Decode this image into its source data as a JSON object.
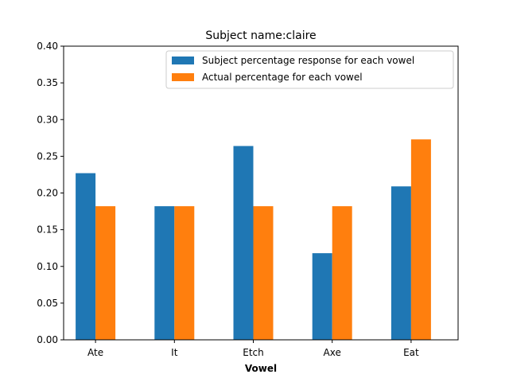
{
  "chart_data": {
    "type": "bar",
    "title": "Subject name:claire",
    "xlabel": "Vowel",
    "ylabel": "",
    "categories": [
      "Ate",
      "It",
      "Etch",
      "Axe",
      "Eat"
    ],
    "series": [
      {
        "name": "Subject percentage response for each vowel",
        "color": "#1f77b4",
        "values": [
          0.227,
          0.182,
          0.264,
          0.118,
          0.209
        ]
      },
      {
        "name": "Actual percentage for each vowel",
        "color": "#ff7f0e",
        "values": [
          0.182,
          0.182,
          0.182,
          0.182,
          0.273
        ]
      }
    ],
    "ylim": [
      0,
      0.4
    ],
    "yticks": [
      "0.00",
      "0.05",
      "0.10",
      "0.15",
      "0.20",
      "0.25",
      "0.30",
      "0.35",
      "0.40"
    ],
    "grid": false,
    "legend_position": "top-right"
  }
}
